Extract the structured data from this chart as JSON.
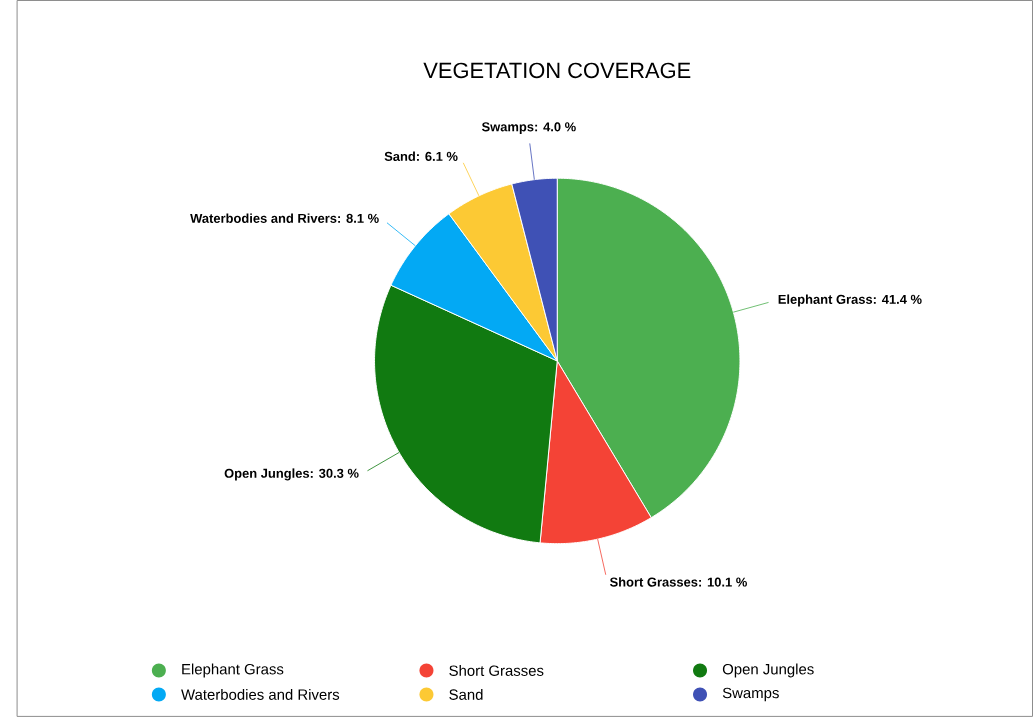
{
  "chart_data": {
    "type": "pie",
    "title": "VEGETATION COVERAGE",
    "categories": [
      "Elephant Grass",
      "Short Grasses",
      "Open Jungles",
      "Waterbodies and Rivers",
      "Sand",
      "Swamps"
    ],
    "values": [
      41.4,
      10.1,
      30.3,
      8.1,
      6.1,
      4.0
    ],
    "colors": [
      "#4caf50",
      "#f44336",
      "#117a11",
      "#03a9f4",
      "#fcc934",
      "#3f51b5"
    ],
    "value_labels": [
      "Elephant Grass: 41.4 %",
      "Short Grasses: 10.1 %",
      "Open Jungles: 30.3 %",
      "Waterbodies and Rivers: 8.1 %",
      "Sand: 6.1 %",
      "Swamps: 4.0 %"
    ],
    "legend": "bottom"
  }
}
